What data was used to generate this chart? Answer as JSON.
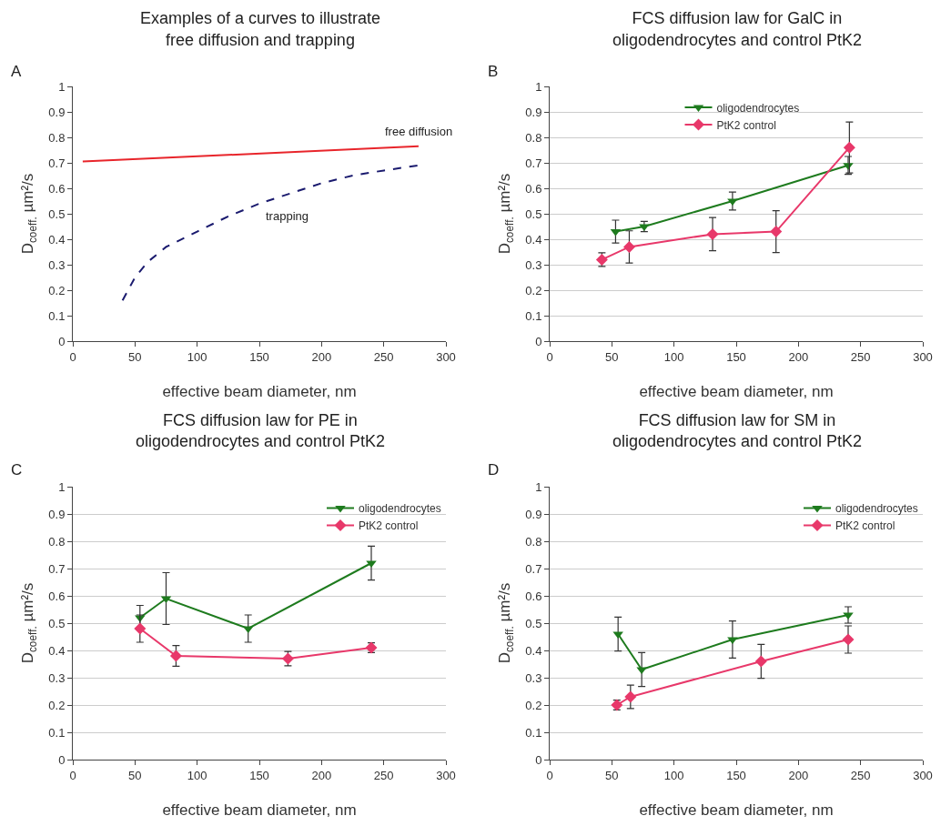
{
  "chart_data": [
    {
      "type": "line",
      "title": "Examples of a curves to illustrate\nfree diffusion and trapping",
      "xlabel": "effective beam diameter, nm",
      "ylabel": "D$_{coeff.}$ µm²/s",
      "annotations": [
        "A"
      ],
      "xlim": [
        0,
        300
      ],
      "ylim": [
        0,
        1
      ],
      "xticks": [
        0,
        50,
        100,
        150,
        200,
        250,
        300
      ],
      "yticks": [
        0,
        0.1,
        0.2,
        0.3,
        0.4,
        0.5,
        0.6,
        0.7,
        0.8,
        0.9,
        1
      ],
      "grid": false,
      "legend": false,
      "marker": "none",
      "series": [
        {
          "name": "free diffusion",
          "color": "#e8252b",
          "line_style": "solid",
          "x": [
            8,
            278
          ],
          "values": [
            0.705,
            0.765
          ]
        },
        {
          "name": "trapping",
          "color": "#1a1a6e",
          "line_style": "dashed",
          "x": [
            40,
            50,
            60,
            75,
            100,
            125,
            150,
            175,
            200,
            225,
            250,
            278
          ],
          "values": [
            0.16,
            0.25,
            0.31,
            0.37,
            0.43,
            0.49,
            0.54,
            0.58,
            0.62,
            0.65,
            0.67,
            0.69
          ]
        }
      ]
    },
    {
      "type": "line",
      "title": "FCS diffusion law for GalC in\noligodendrocytes and control PtK2",
      "xlabel": "effective beam diameter, nm",
      "ylabel": "D$_{coeff.}$ µm²/s",
      "annotations": [
        "B"
      ],
      "xlim": [
        0,
        300
      ],
      "ylim": [
        0,
        1
      ],
      "xticks": [
        0,
        50,
        100,
        150,
        200,
        250,
        300
      ],
      "yticks": [
        0,
        0.1,
        0.2,
        0.3,
        0.4,
        0.5,
        0.6,
        0.7,
        0.8,
        0.9,
        1
      ],
      "grid": "y",
      "legend": "top",
      "line_style": "solid",
      "series": [
        {
          "name": "oligodendrocytes",
          "color": "#1e7b1e",
          "marker": "triangle",
          "x": [
            53,
            76,
            147,
            240
          ],
          "values": [
            0.43,
            0.45,
            0.55,
            0.69
          ],
          "errors": [
            0.045,
            0.02,
            0.035,
            0.035
          ]
        },
        {
          "name": "PtK2 control",
          "color": "#e8386a",
          "marker": "diamond",
          "x": [
            42,
            64,
            131,
            182,
            241
          ],
          "values": [
            0.32,
            0.37,
            0.42,
            0.43,
            0.76
          ],
          "errors": [
            0.027,
            0.063,
            0.065,
            0.082,
            0.1
          ]
        }
      ]
    },
    {
      "type": "line",
      "title": "FCS diffusion law for PE in\noligodendrocytes and control PtK2",
      "xlabel": "effective beam diameter, nm",
      "ylabel": "D$_{coeff.}$ µm²/s",
      "annotations": [
        "C"
      ],
      "xlim": [
        0,
        300
      ],
      "ylim": [
        0,
        1
      ],
      "xticks": [
        0,
        50,
        100,
        150,
        200,
        250,
        300
      ],
      "yticks": [
        0,
        0.1,
        0.2,
        0.3,
        0.4,
        0.5,
        0.6,
        0.7,
        0.8,
        0.9,
        1
      ],
      "grid": "y",
      "legend": "top right",
      "line_style": "solid",
      "series": [
        {
          "name": "oligodendrocytes",
          "color": "#1e7b1e",
          "marker": "triangle",
          "x": [
            54,
            75,
            141,
            240
          ],
          "values": [
            0.52,
            0.59,
            0.48,
            0.72
          ],
          "errors": [
            0.045,
            0.095,
            0.05,
            0.062
          ]
        },
        {
          "name": "PtK2 control",
          "color": "#e8386a",
          "marker": "diamond",
          "x": [
            54,
            83,
            173,
            240
          ],
          "values": [
            0.48,
            0.38,
            0.37,
            0.41
          ],
          "errors": [
            0.05,
            0.038,
            0.026,
            0.018
          ]
        }
      ]
    },
    {
      "type": "line",
      "title": "FCS diffusion law for SM in\noligodendrocytes and control PtK2",
      "xlabel": "effective beam diameter, nm",
      "ylabel": "D$_{coeff.}$ µm²/s",
      "annotations": [
        "D"
      ],
      "xlim": [
        0,
        300
      ],
      "ylim": [
        0,
        1
      ],
      "xticks": [
        0,
        50,
        100,
        150,
        200,
        250,
        300
      ],
      "yticks": [
        0,
        0.1,
        0.2,
        0.3,
        0.4,
        0.5,
        0.6,
        0.7,
        0.8,
        0.9,
        1
      ],
      "grid": "y",
      "legend": "top right",
      "line_style": "solid",
      "series": [
        {
          "name": "oligodendrocytes",
          "color": "#1e7b1e",
          "marker": "triangle",
          "x": [
            55,
            74,
            147,
            240
          ],
          "values": [
            0.46,
            0.33,
            0.44,
            0.53
          ],
          "errors": [
            0.062,
            0.062,
            0.068,
            0.03
          ]
        },
        {
          "name": "PtK2 control",
          "color": "#e8386a",
          "marker": "diamond",
          "x": [
            54,
            65,
            170,
            240
          ],
          "values": [
            0.2,
            0.23,
            0.36,
            0.44
          ],
          "errors": [
            0.018,
            0.043,
            0.062,
            0.05
          ]
        }
      ]
    }
  ]
}
